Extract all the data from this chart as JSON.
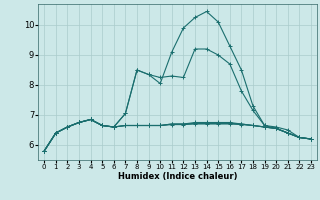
{
  "xlabel": "Humidex (Indice chaleur)",
  "background_color": "#cce8e8",
  "grid_color": "#aacccc",
  "line_color": "#1a6e6e",
  "xlim": [
    -0.5,
    23.5
  ],
  "ylim": [
    5.5,
    10.7
  ],
  "yticks": [
    6,
    7,
    8,
    9,
    10
  ],
  "xticks": [
    0,
    1,
    2,
    3,
    4,
    5,
    6,
    7,
    8,
    9,
    10,
    11,
    12,
    13,
    14,
    15,
    16,
    17,
    18,
    19,
    20,
    21,
    22,
    23
  ],
  "series": [
    [
      5.8,
      6.4,
      6.6,
      6.75,
      6.85,
      6.65,
      6.6,
      7.05,
      8.5,
      8.35,
      8.05,
      9.1,
      9.9,
      10.25,
      10.45,
      10.1,
      9.3,
      8.5,
      7.3,
      6.65,
      6.6,
      6.5,
      6.25,
      6.2
    ],
    [
      5.8,
      6.4,
      6.6,
      6.75,
      6.85,
      6.65,
      6.6,
      7.05,
      8.5,
      8.35,
      8.25,
      8.3,
      8.25,
      9.2,
      9.2,
      9.0,
      8.7,
      7.8,
      7.15,
      6.65,
      6.55,
      6.4,
      6.25,
      6.2
    ],
    [
      5.8,
      6.4,
      6.6,
      6.75,
      6.85,
      6.65,
      6.6,
      6.65,
      6.65,
      6.65,
      6.65,
      6.7,
      6.7,
      6.75,
      6.75,
      6.75,
      6.75,
      6.7,
      6.65,
      6.6,
      6.55,
      6.4,
      6.25,
      6.2
    ],
    [
      5.8,
      6.4,
      6.6,
      6.75,
      6.85,
      6.65,
      6.6,
      6.65,
      6.65,
      6.65,
      6.65,
      6.7,
      6.7,
      6.72,
      6.72,
      6.72,
      6.72,
      6.7,
      6.65,
      6.6,
      6.55,
      6.4,
      6.25,
      6.2
    ],
    [
      5.8,
      6.4,
      6.6,
      6.75,
      6.85,
      6.65,
      6.6,
      6.65,
      6.65,
      6.65,
      6.65,
      6.68,
      6.68,
      6.7,
      6.7,
      6.7,
      6.7,
      6.68,
      6.65,
      6.6,
      6.55,
      6.4,
      6.25,
      6.2
    ]
  ]
}
